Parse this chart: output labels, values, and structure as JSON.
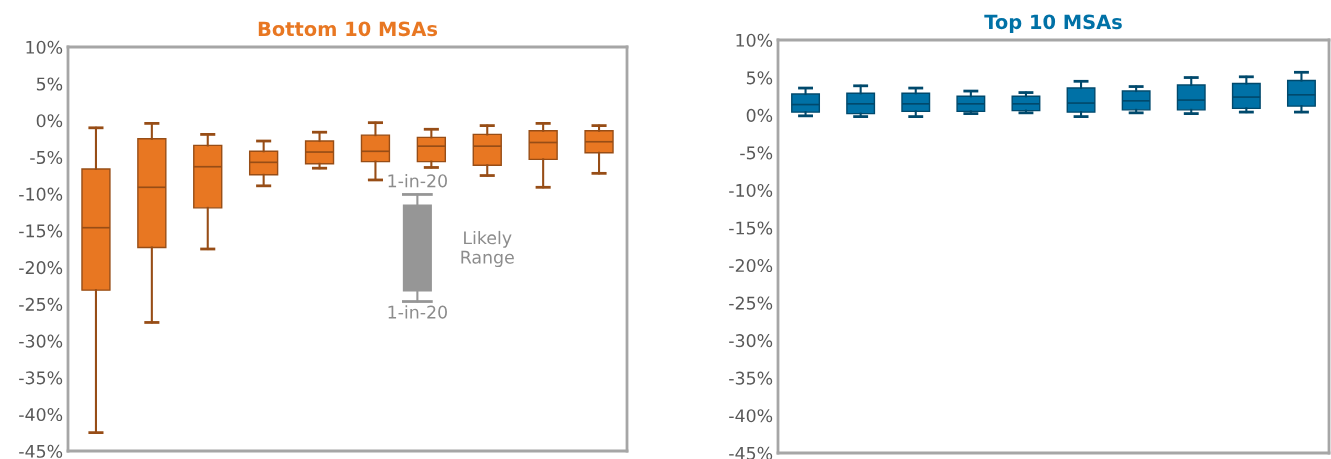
{
  "chart_data": [
    {
      "type": "box",
      "title": "Bottom 10 MSAs",
      "categories": [
        null,
        null,
        null,
        null,
        null,
        null,
        null,
        null,
        null,
        null
      ],
      "series": [
        {
          "color": "#e87722",
          "boxes": [
            {
              "low": -42.5,
              "q1": -23.1,
              "median": -14.6,
              "q3": -6.6,
              "high": -1.0
            },
            {
              "low": -27.5,
              "q1": -17.3,
              "median": -9.1,
              "q3": -2.5,
              "high": -0.4
            },
            {
              "low": -17.5,
              "q1": -11.9,
              "median": -6.3,
              "q3": -3.4,
              "high": -1.9
            },
            {
              "low": -8.9,
              "q1": -7.4,
              "median": -5.7,
              "q3": -4.2,
              "high": -2.8
            },
            {
              "low": -6.5,
              "q1": -5.9,
              "median": -4.3,
              "q3": -2.8,
              "high": -1.6
            },
            {
              "low": -8.1,
              "q1": -5.6,
              "median": -4.2,
              "q3": -2.0,
              "high": -0.3
            },
            {
              "low": -6.4,
              "q1": -5.6,
              "median": -3.5,
              "q3": -2.3,
              "high": -1.2
            },
            {
              "low": -7.5,
              "q1": -6.1,
              "median": -3.5,
              "q3": -1.9,
              "high": -0.7
            },
            {
              "low": -9.1,
              "q1": -5.3,
              "median": -3.0,
              "q3": -1.4,
              "high": -0.4
            },
            {
              "low": -7.2,
              "q1": -4.4,
              "median": -2.9,
              "q3": -1.4,
              "high": -0.7
            }
          ]
        }
      ],
      "ylim": [
        -45,
        10
      ],
      "yticks": [
        {
          "value": -45,
          "label": "-45%"
        },
        {
          "value": -40,
          "label": "-40%"
        },
        {
          "value": -35,
          "label": "-35%"
        },
        {
          "value": -30,
          "label": "-30%"
        },
        {
          "value": -25,
          "label": "-25%"
        },
        {
          "value": -20,
          "label": "-20%"
        },
        {
          "value": -15,
          "label": "-15%"
        },
        {
          "value": -10,
          "label": "-10%"
        },
        {
          "value": -5,
          "label": "-5%"
        },
        {
          "value": 0,
          "label": "0%"
        },
        {
          "value": 5,
          "label": "5%"
        },
        {
          "value": 10,
          "label": "10%"
        }
      ],
      "annotations": [
        "1-in-20",
        "1-in-20",
        "Likely\nRange"
      ],
      "grid": false,
      "legend": false
    },
    {
      "type": "box",
      "title": "Top 10 MSAs",
      "categories": [
        null,
        null,
        null,
        null,
        null,
        null,
        null,
        null,
        null,
        null
      ],
      "series": [
        {
          "color": "#0071a6",
          "boxes": [
            {
              "low": -0.1,
              "q1": 0.4,
              "median": 1.4,
              "q3": 2.8,
              "high": 3.6
            },
            {
              "low": -0.2,
              "q1": 0.2,
              "median": 1.5,
              "q3": 2.9,
              "high": 3.9
            },
            {
              "low": -0.2,
              "q1": 0.5,
              "median": 1.5,
              "q3": 2.9,
              "high": 3.6
            },
            {
              "low": 0.2,
              "q1": 0.5,
              "median": 1.5,
              "q3": 2.5,
              "high": 3.2
            },
            {
              "low": 0.3,
              "q1": 0.6,
              "median": 1.5,
              "q3": 2.5,
              "high": 3.0
            },
            {
              "low": -0.2,
              "q1": 0.4,
              "median": 1.6,
              "q3": 3.6,
              "high": 4.5
            },
            {
              "low": 0.3,
              "q1": 0.7,
              "median": 1.9,
              "q3": 3.2,
              "high": 3.8
            },
            {
              "low": 0.2,
              "q1": 0.7,
              "median": 2.0,
              "q3": 4.0,
              "high": 5.0
            },
            {
              "low": 0.4,
              "q1": 0.9,
              "median": 2.4,
              "q3": 4.2,
              "high": 5.1
            },
            {
              "low": 0.4,
              "q1": 1.2,
              "median": 2.7,
              "q3": 4.6,
              "high": 5.7
            }
          ]
        }
      ],
      "ylim": [
        -45,
        10
      ],
      "yticks": [
        {
          "value": -45,
          "label": "-45%"
        },
        {
          "value": -40,
          "label": "-40%"
        },
        {
          "value": -35,
          "label": "-35%"
        },
        {
          "value": -30,
          "label": "-30%"
        },
        {
          "value": -25,
          "label": "-25%"
        },
        {
          "value": -20,
          "label": "-20%"
        },
        {
          "value": -15,
          "label": "-15%"
        },
        {
          "value": -10,
          "label": "-10%"
        },
        {
          "value": -5,
          "label": "-5%"
        },
        {
          "value": 0,
          "label": "0%"
        },
        {
          "value": 5,
          "label": "5%"
        },
        {
          "value": 10,
          "label": "10%"
        }
      ],
      "grid": false,
      "legend": false
    }
  ]
}
